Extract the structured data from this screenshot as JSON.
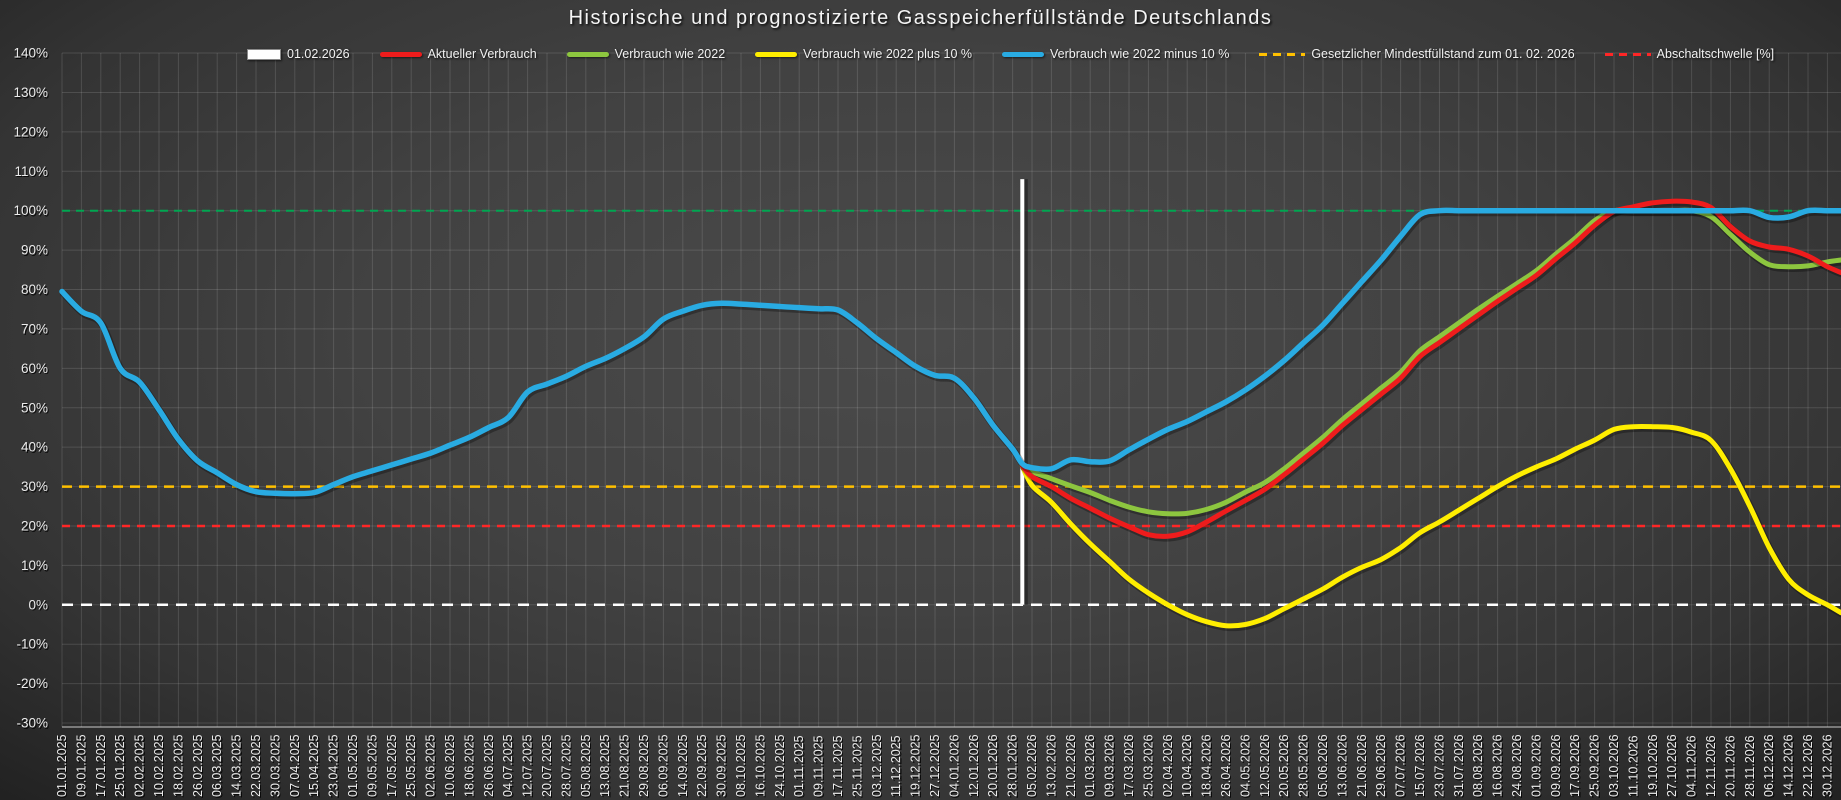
{
  "title": "Historische und prognostizierte Gasspeicherfüllstände Deutschlands",
  "legend": [
    {
      "label": "01.02.2026",
      "type": "bar",
      "color": "#ffffff"
    },
    {
      "label": "Aktueller Verbrauch",
      "type": "line",
      "color": "#ee1c1c"
    },
    {
      "label": "Verbrauch wie 2022",
      "type": "line",
      "color": "#8dc63f"
    },
    {
      "label": "Verbrauch wie 2022 plus 10 %",
      "type": "line",
      "color": "#ffee00"
    },
    {
      "label": "Verbrauch wie 2022 minus 10 %",
      "type": "line",
      "color": "#29abe2"
    },
    {
      "label": "Gesetzlicher Mindestfüllstand zum 01. 02. 2026",
      "type": "dashed",
      "color": "#ffc000"
    },
    {
      "label": "Abschaltschwelle [%]",
      "type": "dashed",
      "color": "#ff2626"
    }
  ],
  "chart_data": {
    "type": "line",
    "title": "Historische und prognostizierte Gasspeicherfüllstände Deutschlands",
    "ylabel": "",
    "xlabel": "",
    "ylim": [
      -30,
      140
    ],
    "ytick_step": 10,
    "ytick_suffix": "%",
    "grid": true,
    "legend_position": "top",
    "x_tick_labels": [
      "01.01.2025",
      "09.01.2025",
      "17.01.2025",
      "25.01.2025",
      "02.02.2025",
      "10.02.2025",
      "18.02.2025",
      "26.02.2025",
      "06.03.2025",
      "14.03.2025",
      "22.03.2025",
      "30.03.2025",
      "07.04.2025",
      "15.04.2025",
      "23.04.2025",
      "01.05.2025",
      "09.05.2025",
      "17.05.2025",
      "25.05.2025",
      "02.06.2025",
      "10.06.2025",
      "18.06.2025",
      "26.06.2025",
      "04.07.2025",
      "12.07.2025",
      "20.07.2025",
      "28.07.2025",
      "05.08.2025",
      "13.08.2025",
      "21.08.2025",
      "29.08.2025",
      "06.09.2025",
      "14.09.2025",
      "22.09.2025",
      "30.09.2025",
      "08.10.2025",
      "16.10.2025",
      "24.10.2025",
      "01.11.2025",
      "09.11.2025",
      "17.11.2025",
      "25.11.2025",
      "03.12.2025",
      "11.12.2025",
      "19.12.2025",
      "27.12.2025",
      "04.01.2026",
      "12.01.2026",
      "20.01.2026",
      "28.01.2026",
      "05.02.2026",
      "13.02.2026",
      "21.02.2026",
      "01.03.2026",
      "09.03.2026",
      "17.03.2026",
      "25.03.2026",
      "02.04.2026",
      "10.04.2026",
      "18.04.2026",
      "26.04.2026",
      "04.05.2026",
      "12.05.2026",
      "20.05.2026",
      "28.05.2026",
      "05.06.2026",
      "13.06.2026",
      "21.06.2026",
      "29.06.2026",
      "07.07.2026",
      "15.07.2026",
      "23.07.2026",
      "31.07.2026",
      "08.08.2026",
      "16.08.2026",
      "24.08.2026",
      "01.09.2026",
      "09.09.2026",
      "17.09.2026",
      "25.09.2026",
      "03.10.2026",
      "11.10.2026",
      "19.10.2026",
      "27.10.2026",
      "04.11.2026",
      "12.11.2026",
      "20.11.2026",
      "28.11.2026",
      "06.12.2026",
      "14.12.2026",
      "22.12.2026",
      "30.12.2026"
    ],
    "reference_lines": [
      {
        "name": "hundert-prozent-linie",
        "value": 100,
        "color": "#00a651",
        "style": "dashed",
        "width": 2,
        "dash": "8 6"
      },
      {
        "name": "gesetzlicher-mindestfuellstand",
        "value": 30,
        "color": "#ffc000",
        "style": "dashed",
        "width": 2.5,
        "dash": "10 7"
      },
      {
        "name": "abschaltschwelle",
        "value": 20,
        "color": "#ff2626",
        "style": "dashed",
        "width": 2.5,
        "dash": "8 7"
      },
      {
        "name": "null-linie",
        "value": 0,
        "color": "#ffffff",
        "style": "dashed",
        "width": 2.5,
        "dash": "11 8"
      }
    ],
    "vertical_marker": {
      "label": "01.02.2026",
      "x_index": 49.5,
      "color": "#ffffff",
      "value_top": 108,
      "value_bottom": 0
    },
    "series": [
      {
        "name": "Verbrauch wie 2022 plus 10 %",
        "slug": "verbrauch-2022-plus-10",
        "color": "#ffee00",
        "width": 5,
        "points": [
          [
            49.5,
            35.3
          ],
          [
            50,
            30.3
          ],
          [
            51,
            26
          ],
          [
            52,
            20.5
          ],
          [
            53,
            15.5
          ],
          [
            54,
            11
          ],
          [
            55,
            6.5
          ],
          [
            56,
            3
          ],
          [
            57,
            0
          ],
          [
            58,
            -2.5
          ],
          [
            59,
            -4.3
          ],
          [
            60,
            -5.3
          ],
          [
            61,
            -5
          ],
          [
            62,
            -3.5
          ],
          [
            63,
            -1
          ],
          [
            64,
            1.5
          ],
          [
            65,
            4
          ],
          [
            66,
            7
          ],
          [
            67,
            9.5
          ],
          [
            68,
            11.5
          ],
          [
            69,
            14.5
          ],
          [
            70,
            18.3
          ],
          [
            71,
            21
          ],
          [
            72,
            24
          ],
          [
            73,
            27
          ],
          [
            74,
            30
          ],
          [
            75,
            32.7
          ],
          [
            76,
            35
          ],
          [
            77,
            37
          ],
          [
            78,
            39.5
          ],
          [
            79,
            41.8
          ],
          [
            80,
            44.5
          ],
          [
            81,
            45.2
          ],
          [
            82,
            45.2
          ],
          [
            83,
            45
          ],
          [
            84,
            43.8
          ],
          [
            85,
            41.7
          ],
          [
            86,
            34.5
          ],
          [
            87,
            25
          ],
          [
            88,
            14.5
          ],
          [
            89,
            6.5
          ],
          [
            90,
            2.5
          ],
          [
            91,
            0
          ],
          [
            91.7,
            -2
          ]
        ]
      },
      {
        "name": "Verbrauch wie 2022",
        "slug": "verbrauch-2022",
        "color": "#8dc63f",
        "width": 5,
        "points": [
          [
            49.5,
            35.3
          ],
          [
            50,
            33.8
          ],
          [
            51,
            32
          ],
          [
            52,
            30.2
          ],
          [
            53,
            28.5
          ],
          [
            54,
            26.5
          ],
          [
            55,
            24.8
          ],
          [
            56,
            23.6
          ],
          [
            57,
            23.1
          ],
          [
            58,
            23.2
          ],
          [
            59,
            24.2
          ],
          [
            60,
            26
          ],
          [
            61,
            28.6
          ],
          [
            62,
            31
          ],
          [
            63,
            34.5
          ],
          [
            64,
            38.5
          ],
          [
            65,
            42.5
          ],
          [
            66,
            47
          ],
          [
            67,
            51
          ],
          [
            68,
            55
          ],
          [
            69,
            59
          ],
          [
            70,
            64.5
          ],
          [
            71,
            68
          ],
          [
            72,
            71.5
          ],
          [
            73,
            75
          ],
          [
            74,
            78.3
          ],
          [
            75,
            81.5
          ],
          [
            76,
            84.8
          ],
          [
            77,
            89
          ],
          [
            78,
            93
          ],
          [
            79,
            97.5
          ],
          [
            80,
            100
          ],
          [
            81,
            100
          ],
          [
            82,
            100
          ],
          [
            83,
            100
          ],
          [
            84,
            100
          ],
          [
            85,
            98.5
          ],
          [
            86,
            94
          ],
          [
            87,
            89.5
          ],
          [
            88,
            86.3
          ],
          [
            89,
            85.8
          ],
          [
            90,
            86
          ],
          [
            91,
            87
          ],
          [
            91.7,
            87.5
          ]
        ]
      },
      {
        "name": "Aktueller Verbrauch",
        "slug": "aktueller-verbrauch",
        "color": "#ee1c1c",
        "width": 5,
        "points": [
          [
            49.5,
            35.3
          ],
          [
            50,
            32.5
          ],
          [
            51,
            30
          ],
          [
            52,
            27
          ],
          [
            53,
            24.5
          ],
          [
            54,
            22
          ],
          [
            55,
            19.8
          ],
          [
            56,
            17.8
          ],
          [
            57,
            17.4
          ],
          [
            58,
            18.5
          ],
          [
            59,
            21
          ],
          [
            60,
            23.8
          ],
          [
            61,
            26.5
          ],
          [
            62,
            29.3
          ],
          [
            63,
            33
          ],
          [
            64,
            37
          ],
          [
            65,
            41
          ],
          [
            66,
            45.5
          ],
          [
            67,
            49.5
          ],
          [
            68,
            53.5
          ],
          [
            69,
            57.5
          ],
          [
            70,
            63
          ],
          [
            71,
            66.5
          ],
          [
            72,
            70
          ],
          [
            73,
            73.5
          ],
          [
            74,
            77
          ],
          [
            75,
            80.3
          ],
          [
            76,
            83.6
          ],
          [
            77,
            87.8
          ],
          [
            78,
            91.8
          ],
          [
            79,
            96.3
          ],
          [
            80,
            99.8
          ],
          [
            81,
            101
          ],
          [
            82,
            102
          ],
          [
            83,
            102.4
          ],
          [
            84,
            102.2
          ],
          [
            85,
            100.8
          ],
          [
            86,
            96
          ],
          [
            87,
            92.3
          ],
          [
            88,
            90.8
          ],
          [
            89,
            90.2
          ],
          [
            90,
            88.5
          ],
          [
            91,
            85.8
          ],
          [
            91.7,
            84.3
          ]
        ]
      },
      {
        "name": "Verbrauch wie 2022 minus 10 %",
        "slug": "verbrauch-2022-minus-10",
        "color": "#29abe2",
        "width": 5.5,
        "points": [
          [
            0,
            79.5
          ],
          [
            1,
            74.5
          ],
          [
            2,
            71.5
          ],
          [
            3,
            60
          ],
          [
            4,
            56.5
          ],
          [
            5,
            49.5
          ],
          [
            6,
            42
          ],
          [
            7,
            36.5
          ],
          [
            8,
            33.5
          ],
          [
            9,
            30.5
          ],
          [
            10,
            28.7
          ],
          [
            11,
            28.3
          ],
          [
            12,
            28.2
          ],
          [
            13,
            28.5
          ],
          [
            14,
            30.5
          ],
          [
            15,
            32.5
          ],
          [
            16,
            34
          ],
          [
            17,
            35.5
          ],
          [
            18,
            37
          ],
          [
            19,
            38.5
          ],
          [
            20,
            40.5
          ],
          [
            21,
            42.5
          ],
          [
            22,
            45
          ],
          [
            23,
            47.5
          ],
          [
            24,
            54
          ],
          [
            25,
            56
          ],
          [
            26,
            58
          ],
          [
            27,
            60.5
          ],
          [
            28,
            62.5
          ],
          [
            29,
            65
          ],
          [
            30,
            68
          ],
          [
            31,
            72.5
          ],
          [
            32,
            74.5
          ],
          [
            33,
            76
          ],
          [
            34,
            76.5
          ],
          [
            35,
            76.3
          ],
          [
            36,
            76
          ],
          [
            37,
            75.7
          ],
          [
            38,
            75.4
          ],
          [
            39,
            75.1
          ],
          [
            40,
            74.8
          ],
          [
            41,
            71.5
          ],
          [
            42,
            67.5
          ],
          [
            43,
            64
          ],
          [
            44,
            60.5
          ],
          [
            45,
            58.2
          ],
          [
            46,
            57.5
          ],
          [
            47,
            52.5
          ],
          [
            48,
            45.5
          ],
          [
            49,
            39.5
          ],
          [
            49.5,
            35.8
          ],
          [
            50,
            34.8
          ],
          [
            51,
            34.5
          ],
          [
            52,
            36.8
          ],
          [
            53,
            36.3
          ],
          [
            54,
            36.5
          ],
          [
            55,
            39.3
          ],
          [
            56,
            42
          ],
          [
            57,
            44.5
          ],
          [
            58,
            46.5
          ],
          [
            59,
            49
          ],
          [
            60,
            51.5
          ],
          [
            61,
            54.5
          ],
          [
            62,
            58
          ],
          [
            63,
            62
          ],
          [
            64,
            66.5
          ],
          [
            65,
            71
          ],
          [
            66,
            76.5
          ],
          [
            67,
            82
          ],
          [
            68,
            87.5
          ],
          [
            69,
            93.5
          ],
          [
            70,
            99
          ],
          [
            71,
            100
          ],
          [
            72,
            100
          ],
          [
            73,
            100
          ],
          [
            74,
            100
          ],
          [
            75,
            100
          ],
          [
            76,
            100
          ],
          [
            77,
            100
          ],
          [
            78,
            100
          ],
          [
            79,
            100
          ],
          [
            80,
            100
          ],
          [
            81,
            100
          ],
          [
            82,
            100
          ],
          [
            83,
            100
          ],
          [
            84,
            100
          ],
          [
            85,
            100
          ],
          [
            86,
            100
          ],
          [
            87,
            100
          ],
          [
            88,
            98.3
          ],
          [
            89,
            98.4
          ],
          [
            90,
            100
          ],
          [
            91,
            100
          ],
          [
            91.7,
            100
          ]
        ]
      }
    ]
  }
}
